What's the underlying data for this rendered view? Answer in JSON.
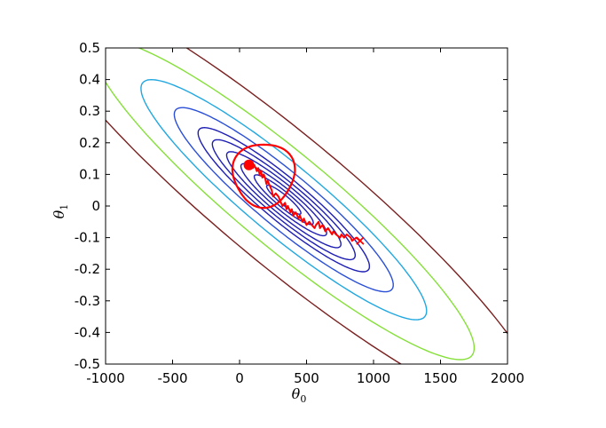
{
  "chart_data": {
    "type": "contour",
    "xlabel": "θ",
    "xlabel_subscript": "0",
    "ylabel": "θ",
    "ylabel_subscript": "1",
    "xlim": [
      -1000,
      2000
    ],
    "ylim": [
      -0.5,
      0.5
    ],
    "xticks": [
      "-1000",
      "-500",
      "0",
      "500",
      "1000",
      "1500",
      "2000"
    ],
    "yticks": [
      "0.5",
      "0.4",
      "0.3",
      "0.2",
      "0.1",
      "0",
      "-0.1",
      "-0.2",
      "-0.3",
      "-0.4",
      "-0.5"
    ],
    "xtick_values": [
      -1000,
      -500,
      0,
      500,
      1000,
      1500,
      2000
    ],
    "ytick_values": [
      0.5,
      0.4,
      0.3,
      0.2,
      0.1,
      0,
      -0.1,
      -0.2,
      -0.3,
      -0.4,
      -0.5
    ],
    "contours": {
      "center": [
        330,
        0.02
      ],
      "direction": [
        1,
        -0.00033
      ],
      "major_half_lengths": [
        180,
        310,
        450,
        600,
        750,
        900,
        1150,
        1500,
        2000,
        2700
      ],
      "minor_half_lengths": [
        0.018,
        0.03,
        0.043,
        0.057,
        0.071,
        0.086,
        0.11,
        0.143,
        0.19,
        0.26
      ],
      "colors": [
        "#1e1eb4",
        "#1e1eb4",
        "#1e1eb4",
        "#1e1eb4",
        "#1e1eb4",
        "#1e1eb4",
        "#2a4fd6",
        "#22a8e0",
        "#86e03a",
        "#7a2020"
      ]
    },
    "gd_path": {
      "color": "#ff0000",
      "x": [
        900,
        870,
        840,
        830,
        800,
        780,
        760,
        750,
        720,
        700,
        690,
        660,
        640,
        620,
        600,
        590,
        570,
        560,
        540,
        520,
        500,
        480,
        470,
        450,
        440,
        420,
        400,
        390,
        380,
        360,
        350,
        340,
        320,
        300,
        290,
        270,
        250,
        240,
        230,
        220,
        210,
        200,
        190,
        180,
        170,
        160,
        150,
        140,
        130,
        120,
        110,
        100,
        90,
        80
      ],
      "y": [
        -0.11,
        -0.1,
        -0.11,
        -0.1,
        -0.09,
        -0.1,
        -0.09,
        -0.1,
        -0.09,
        -0.08,
        -0.09,
        -0.07,
        -0.08,
        -0.06,
        -0.07,
        -0.05,
        -0.06,
        -0.07,
        -0.06,
        -0.05,
        -0.06,
        -0.04,
        -0.05,
        -0.03,
        -0.04,
        -0.02,
        -0.03,
        -0.01,
        -0.02,
        0.0,
        -0.01,
        0.01,
        0.0,
        0.02,
        0.03,
        0.04,
        0.03,
        0.05,
        0.06,
        0.07,
        0.08,
        0.07,
        0.09,
        0.1,
        0.09,
        0.11,
        0.1,
        0.12,
        0.11,
        0.12,
        0.13,
        0.12,
        0.13,
        0.13
      ]
    },
    "gd_loop": {
      "color": "#ff0000",
      "center": [
        180,
        0.1
      ],
      "radius_x": 230,
      "radius_y": 0.1
    },
    "markers": {
      "start": {
        "x": 900,
        "y": -0.11,
        "symbol": "x",
        "color": "#ff0000"
      },
      "end": {
        "x": 70,
        "y": 0.13,
        "symbol": "dot",
        "color": "#ff0000"
      }
    },
    "grid": false,
    "legend": "none"
  }
}
